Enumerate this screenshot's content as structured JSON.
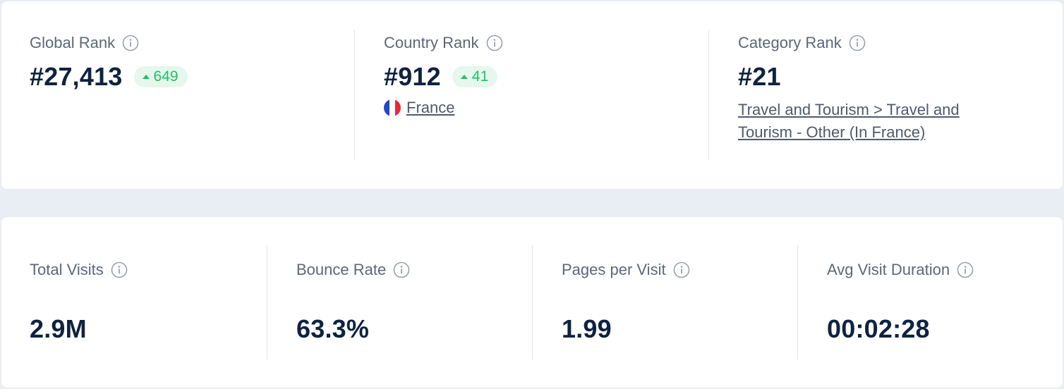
{
  "ranks": {
    "global": {
      "label": "Global Rank",
      "value": "#27,413",
      "delta": "649"
    },
    "country": {
      "label": "Country Rank",
      "value": "#912",
      "delta": "41",
      "country_name": "France",
      "flag_colors": [
        "#1f49c8",
        "#ffffff",
        "#e8283b"
      ]
    },
    "category": {
      "label": "Category Rank",
      "value": "#21",
      "link_text": "Travel and Tourism > Travel and Tourism - Other (In France)"
    }
  },
  "stats": {
    "total_visits": {
      "label": "Total Visits",
      "value": "2.9M"
    },
    "bounce_rate": {
      "label": "Bounce Rate",
      "value": "63.3%"
    },
    "pages_per_visit": {
      "label": "Pages per Visit",
      "value": "1.99"
    },
    "avg_visit_duration": {
      "label": "Avg Visit Duration",
      "value": "00:02:28"
    }
  },
  "colors": {
    "delta_positive": "#1fbf66",
    "delta_bg": "#e6f7ed",
    "value_text": "#0f2240",
    "label_text": "#5d6778"
  },
  "icons": {
    "info": "info-circle-icon",
    "delta_up": "triangle-up-icon",
    "flag": "france-flag-icon"
  }
}
